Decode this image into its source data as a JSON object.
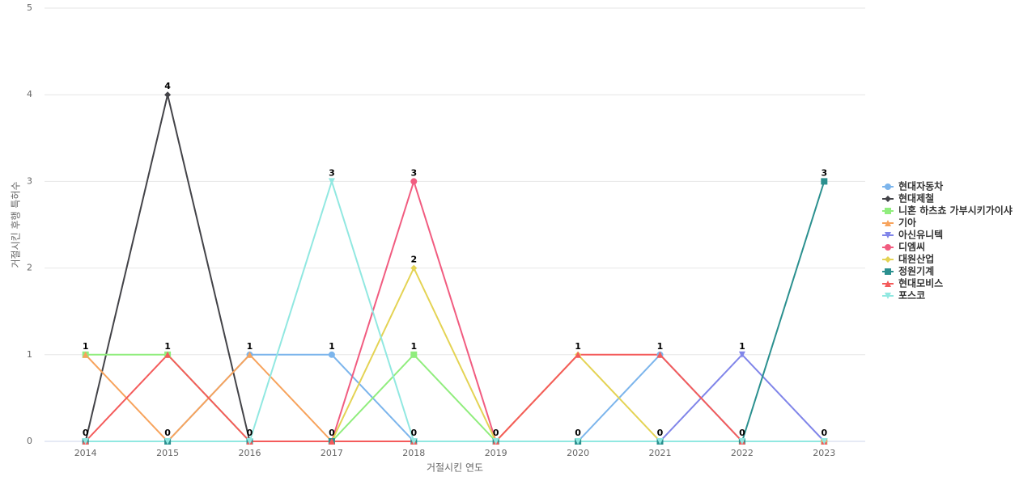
{
  "chart_data": {
    "type": "line",
    "x_label": "거절시킨 연도",
    "y_label": "거절시킨 후행 특허수",
    "categories": [
      "2014",
      "2015",
      "2016",
      "2017",
      "2018",
      "2019",
      "2020",
      "2021",
      "2022",
      "2023"
    ],
    "ylim": [
      0,
      5
    ],
    "yticks": [
      0,
      1,
      2,
      3,
      4,
      5
    ],
    "grid": true,
    "legend": "right",
    "series": [
      {
        "name": "현대자동차",
        "color": "#7cb5ec",
        "values": [
          0,
          0,
          1,
          1,
          0,
          0,
          0,
          1,
          0,
          0
        ]
      },
      {
        "name": "현대제철",
        "color": "#434348",
        "values": [
          0,
          4,
          0,
          0,
          0,
          0,
          0,
          0,
          0,
          0
        ]
      },
      {
        "name": "니혼 하츠쵸 가부시키가이샤",
        "color": "#90ed7d",
        "values": [
          1,
          1,
          0,
          0,
          1,
          0,
          0,
          0,
          0,
          0
        ]
      },
      {
        "name": "기아",
        "color": "#f7a35c",
        "values": [
          1,
          0,
          1,
          0,
          0,
          0,
          0,
          0,
          0,
          0
        ]
      },
      {
        "name": "아신유니텍",
        "color": "#8085e9",
        "values": [
          0,
          0,
          0,
          0,
          0,
          0,
          0,
          0,
          1,
          0
        ]
      },
      {
        "name": "디엠씨",
        "color": "#f15c80",
        "values": [
          0,
          0,
          0,
          0,
          3,
          0,
          0,
          0,
          0,
          0
        ]
      },
      {
        "name": "대원산업",
        "color": "#e4d354",
        "values": [
          0,
          0,
          0,
          0,
          2,
          0,
          1,
          0,
          0,
          0
        ]
      },
      {
        "name": "정원기계",
        "color": "#2b908f",
        "values": [
          0,
          0,
          0,
          0,
          0,
          0,
          0,
          0,
          0,
          3
        ]
      },
      {
        "name": "현대모비스",
        "color": "#f45b5b",
        "values": [
          0,
          1,
          0,
          0,
          0,
          0,
          1,
          1,
          0,
          0
        ]
      },
      {
        "name": "포스코",
        "color": "#91e8e1",
        "values": [
          0,
          0,
          0,
          3,
          0,
          0,
          0,
          0,
          0,
          0
        ]
      }
    ]
  }
}
